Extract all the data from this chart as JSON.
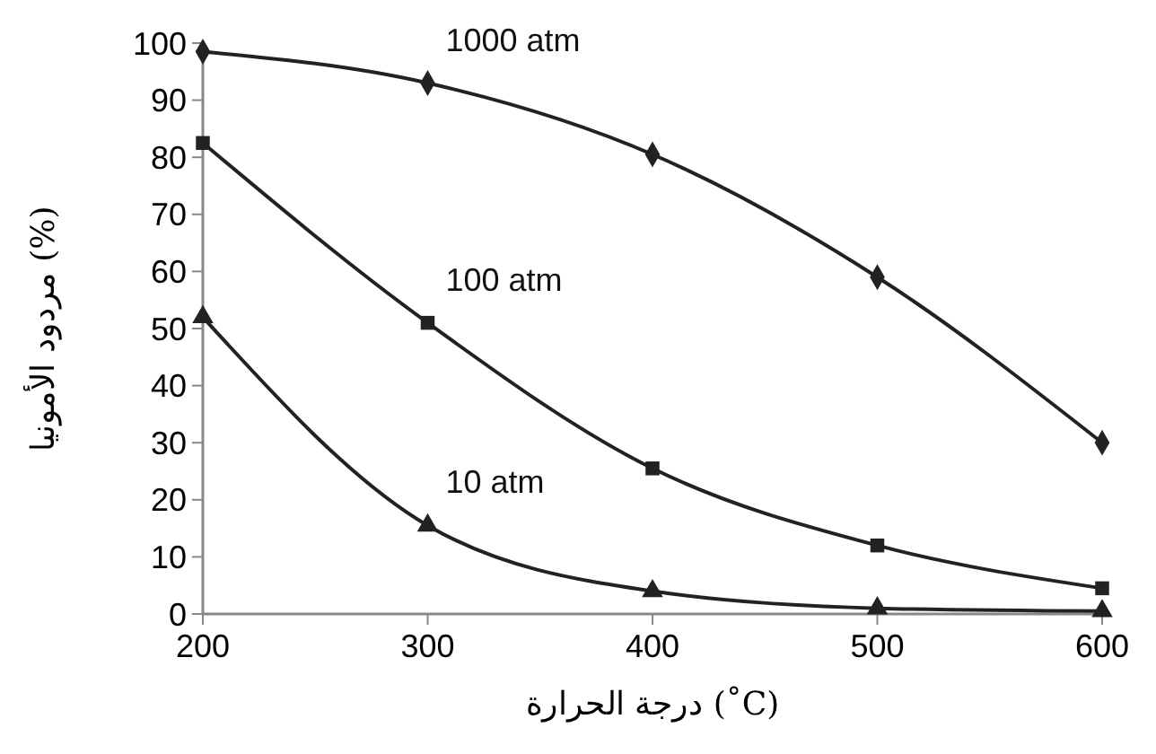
{
  "chart_data": {
    "type": "line",
    "xlabel": "درجة الحرارة (˚C)",
    "ylabel": "مردود الأمونيا (%)",
    "x": [
      200,
      300,
      400,
      500,
      600
    ],
    "xlim": [
      200,
      600
    ],
    "xticks": [
      200,
      300,
      400,
      500,
      600
    ],
    "ylim": [
      0,
      100
    ],
    "yticks": [
      0,
      10,
      20,
      30,
      40,
      50,
      60,
      70,
      80,
      90,
      100
    ],
    "grid": false,
    "line_style": "solid",
    "series": [
      {
        "name": "1000 atm",
        "color": "#222222",
        "marker": "diamond",
        "values": [
          98.5,
          93,
          80.5,
          59,
          30
        ]
      },
      {
        "name": "100 atm",
        "color": "#222222",
        "marker": "square",
        "values": [
          82.5,
          51,
          25.5,
          12,
          4.5
        ]
      },
      {
        "name": "10 atm",
        "color": "#222222",
        "marker": "triangle",
        "values": [
          52,
          15.5,
          4,
          1,
          0.5
        ]
      }
    ]
  }
}
